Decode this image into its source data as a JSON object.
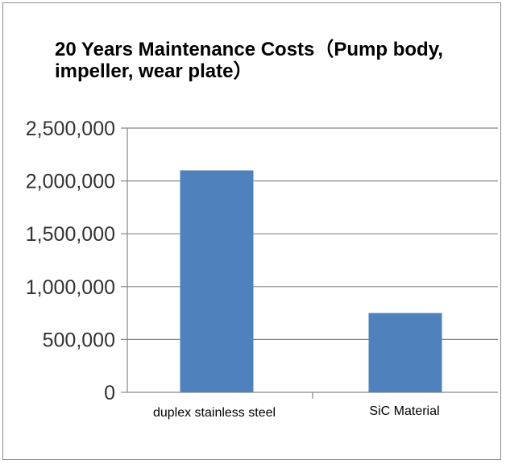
{
  "chart_data": {
    "type": "bar",
    "title": "20 Years Maintenance Costs（Pump body, impeller, wear plate）",
    "xlabel": "",
    "ylabel": "",
    "categories": [
      "duplex stainless steel",
      "SiC Material"
    ],
    "values": [
      2100000,
      750000
    ],
    "ylim": [
      0,
      2500000
    ],
    "yticks": [
      "0",
      "500,000",
      "1,000,000",
      "1,500,000",
      "2,000,000",
      "2,500,000"
    ],
    "grid": true,
    "legend": "none",
    "colors": {
      "bar": "#4f81bd",
      "grid": "#868686",
      "axis": "#868686"
    }
  }
}
